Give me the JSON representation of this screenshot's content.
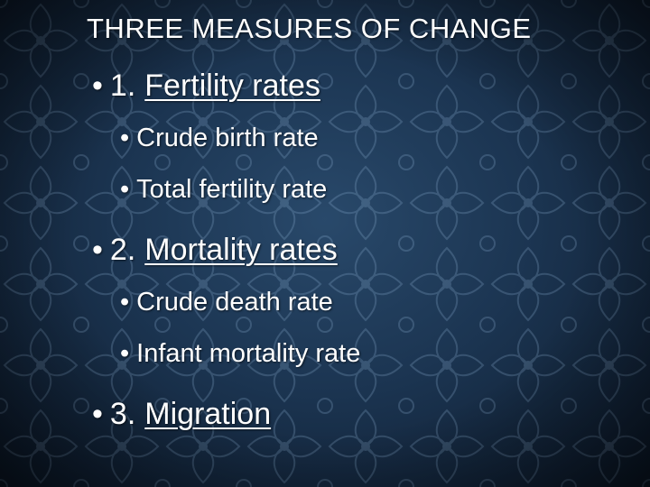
{
  "slide": {
    "title": "THREE MEASURES OF CHANGE",
    "bullet_glyph": "•",
    "items": [
      {
        "number": "1.",
        "label": "Fertility rates",
        "subitems": [
          "Crude birth rate",
          "Total fertility rate"
        ]
      },
      {
        "number": "2.",
        "label": "Mortality rates",
        "subitems": [
          "Crude death rate",
          "Infant mortality rate"
        ]
      },
      {
        "number": "3.",
        "label": "Migration",
        "subitems": []
      }
    ]
  }
}
